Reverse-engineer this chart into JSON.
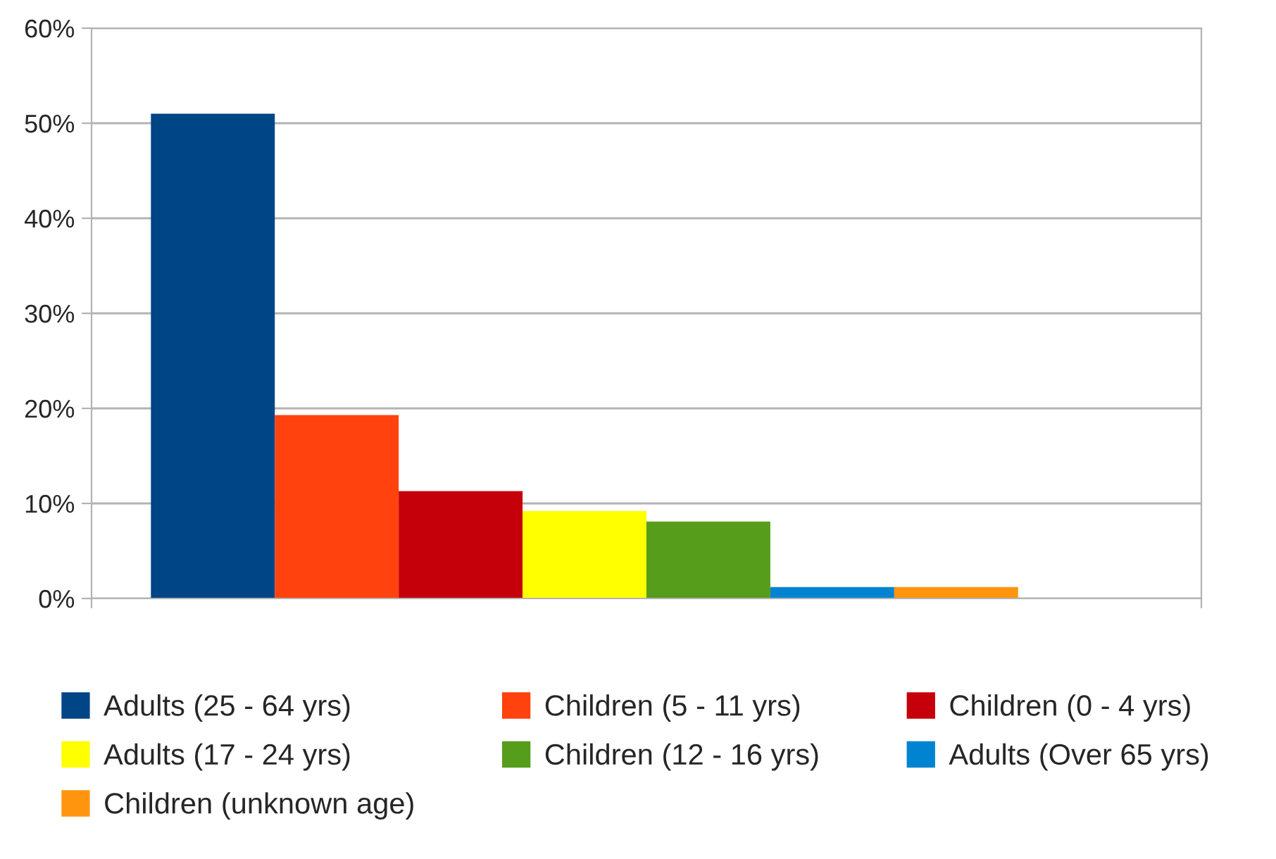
{
  "chart_data": {
    "type": "bar",
    "categories": [
      null
    ],
    "series": [
      {
        "name": "Adults (25 - 64 yrs)",
        "color": "#004586",
        "values": [
          51
        ]
      },
      {
        "name": "Children (5 - 11 yrs)",
        "color": "#ff420e",
        "values": [
          19.3
        ]
      },
      {
        "name": "Children (0 - 4 yrs)",
        "color": "#c5000b",
        "values": [
          11.3
        ]
      },
      {
        "name": "Adults (17 - 24 yrs)",
        "color": "#ffff00",
        "values": [
          9.2
        ]
      },
      {
        "name": "Children (12 - 16 yrs)",
        "color": "#579d1c",
        "values": [
          8.1
        ]
      },
      {
        "name": "Adults (Over 65 yrs)",
        "color": "#0084d1",
        "values": [
          1.2
        ]
      },
      {
        "name": "Children (unknown age)",
        "color": "#ff950e",
        "values": [
          1.2
        ]
      }
    ],
    "ylim": [
      0,
      60
    ],
    "yticks": [
      {
        "value": 0,
        "label": "0%"
      },
      {
        "value": 10,
        "label": "10%"
      },
      {
        "value": 20,
        "label": "20%"
      },
      {
        "value": 30,
        "label": "30%"
      },
      {
        "value": 40,
        "label": "40%"
      },
      {
        "value": 50,
        "label": "50%"
      },
      {
        "value": 60,
        "label": "60%"
      }
    ],
    "grid": "y",
    "legend": "bottom"
  }
}
